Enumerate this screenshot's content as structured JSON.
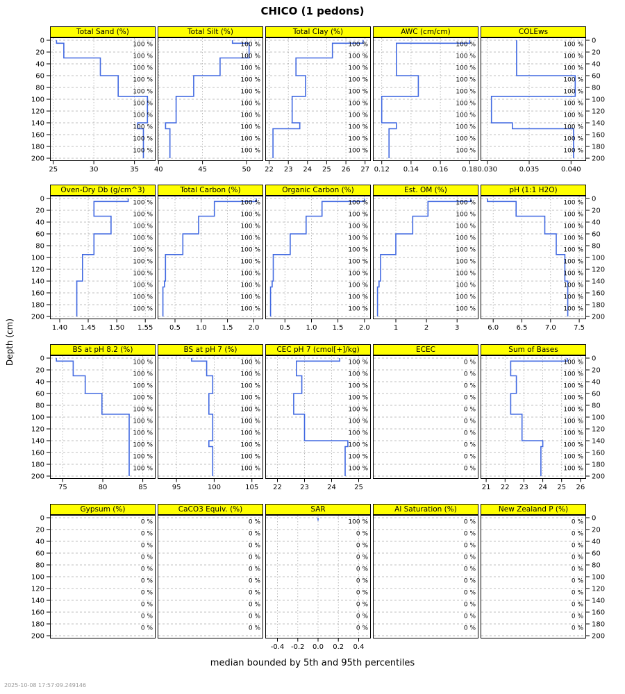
{
  "title": "CHICO (1 pedons)",
  "caption": "median bounded by 5th and 95th percentiles",
  "timestamp": "2025-10-08 17:57:09.249146",
  "ylab": "Depth (cm)",
  "colors": {
    "median_line": "#4169E1",
    "strip_bg": "#FFFF00",
    "strip_border": "#000000",
    "panel_border": "#000000",
    "grid": "#AAAAAA",
    "text": "#000000",
    "timestamp_text": "#999999"
  },
  "depth_axis": {
    "label": "Depth (cm)",
    "tick_values": [
      0,
      20,
      40,
      60,
      80,
      100,
      120,
      140,
      160,
      180,
      200
    ],
    "tick_labels": [
      "0",
      "20",
      "40",
      "60",
      "80",
      "100",
      "120",
      "140",
      "160",
      "180",
      "200"
    ]
  },
  "chart_data": {
    "type": "line",
    "note": "step profiles of median soil property value vs depth (cm); steps are [top_cm, bottom_cm, value]; pct_labels are contributing fraction labels per 20 cm slice",
    "slice_label_depths": [
      0,
      20,
      40,
      60,
      80,
      100,
      120,
      140,
      160,
      180
    ],
    "rows": [
      {
        "panels": [
          {
            "strip": "Total Sand (%)",
            "x_domain": [
              24.6,
              37.6
            ],
            "tick_values": [
              25,
              30,
              35
            ],
            "tick_labels": [
              "25",
              "30",
              "35"
            ],
            "steps": [
              [
                0,
                5,
                25.4
              ],
              [
                5,
                30,
                26.3
              ],
              [
                30,
                60,
                30.8
              ],
              [
                60,
                95,
                33.0
              ],
              [
                95,
                140,
                36.6
              ],
              [
                140,
                150,
                35.4
              ],
              [
                150,
                200,
                36.1
              ]
            ],
            "pct_labels": "100 %"
          },
          {
            "strip": "Total Silt (%)",
            "x_domain": [
              39.9,
              51.9
            ],
            "tick_values": [
              40,
              45,
              50
            ],
            "tick_labels": [
              "40",
              "45",
              "50"
            ],
            "steps": [
              [
                0,
                5,
                48.4
              ],
              [
                5,
                30,
                50.3
              ],
              [
                30,
                60,
                47.0
              ],
              [
                60,
                95,
                44.0
              ],
              [
                95,
                140,
                42.0
              ],
              [
                140,
                150,
                40.8
              ],
              [
                150,
                200,
                41.3
              ]
            ],
            "pct_labels": "100 %"
          },
          {
            "strip": "Total Clay (%)",
            "x_domain": [
              21.8,
              27.3
            ],
            "tick_values": [
              22,
              23,
              24,
              25,
              26,
              27
            ],
            "tick_labels": [
              "22",
              "23",
              "24",
              "25",
              "26",
              "27"
            ],
            "steps": [
              [
                0,
                5,
                26.9
              ],
              [
                5,
                30,
                25.3
              ],
              [
                30,
                60,
                23.4
              ],
              [
                60,
                95,
                23.9
              ],
              [
                95,
                140,
                23.2
              ],
              [
                140,
                150,
                23.6
              ],
              [
                150,
                200,
                22.2
              ]
            ],
            "pct_labels": "100 %"
          },
          {
            "strip": "AWC (cm/cm)",
            "x_domain": [
              0.114,
              0.186
            ],
            "tick_values": [
              0.12,
              0.14,
              0.16,
              0.18
            ],
            "tick_labels": [
              "0.12",
              "0.14",
              "0.16",
              "0.18"
            ],
            "steps": [
              [
                0,
                5,
                0.18
              ],
              [
                5,
                30,
                0.13
              ],
              [
                30,
                60,
                0.13
              ],
              [
                60,
                95,
                0.145
              ],
              [
                95,
                140,
                0.12
              ],
              [
                140,
                150,
                0.13
              ],
              [
                150,
                200,
                0.125
              ]
            ],
            "pct_labels": "100 %"
          },
          {
            "strip": "COLEws",
            "x_domain": [
              0.0292,
              0.0418
            ],
            "tick_values": [
              0.03,
              0.035,
              0.04
            ],
            "tick_labels": [
              "0.030",
              "0.035",
              "0.040"
            ],
            "steps": [
              [
                0,
                5,
                0.0335
              ],
              [
                5,
                30,
                0.0335
              ],
              [
                30,
                60,
                0.0335
              ],
              [
                60,
                95,
                0.0405
              ],
              [
                95,
                140,
                0.0305
              ],
              [
                140,
                150,
                0.033
              ],
              [
                150,
                200,
                0.0403
              ]
            ],
            "pct_labels": "100 %"
          }
        ]
      },
      {
        "panels": [
          {
            "strip": "Oven-Dry Db (g/cm^3)",
            "x_domain": [
              1.383,
              1.568
            ],
            "tick_values": [
              1.4,
              1.45,
              1.5,
              1.55
            ],
            "tick_labels": [
              "1.40",
              "1.45",
              "1.50",
              "1.55"
            ],
            "steps": [
              [
                0,
                5,
                1.52
              ],
              [
                5,
                30,
                1.46
              ],
              [
                30,
                60,
                1.49
              ],
              [
                60,
                95,
                1.46
              ],
              [
                95,
                140,
                1.44
              ],
              [
                140,
                150,
                1.43
              ],
              [
                150,
                200,
                1.43
              ]
            ],
            "pct_labels": "100 %"
          },
          {
            "strip": "Total Carbon (%)",
            "x_domain": [
              0.17,
              2.18
            ],
            "tick_values": [
              0.5,
              1.0,
              1.5,
              2.0
            ],
            "tick_labels": [
              "0.5",
              "1.0",
              "1.5",
              "2.0"
            ],
            "steps": [
              [
                0,
                5,
                2.05
              ],
              [
                5,
                30,
                1.25
              ],
              [
                30,
                60,
                0.95
              ],
              [
                60,
                95,
                0.65
              ],
              [
                95,
                140,
                0.32
              ],
              [
                140,
                150,
                0.3
              ],
              [
                150,
                200,
                0.27
              ]
            ],
            "pct_labels": "100 %"
          },
          {
            "strip": "Organic Carbon (%)",
            "x_domain": [
              0.13,
              2.12
            ],
            "tick_values": [
              0.5,
              1.0,
              1.5,
              2.0
            ],
            "tick_labels": [
              "0.5",
              "1.0",
              "1.5",
              "2.0"
            ],
            "steps": [
              [
                0,
                5,
                2.0
              ],
              [
                5,
                30,
                1.2
              ],
              [
                30,
                60,
                0.9
              ],
              [
                60,
                95,
                0.6
              ],
              [
                95,
                140,
                0.28
              ],
              [
                140,
                150,
                0.26
              ],
              [
                150,
                200,
                0.23
              ]
            ],
            "pct_labels": "100 %"
          },
          {
            "strip": "Est. OM (%)",
            "x_domain": [
              0.25,
              3.7
            ],
            "tick_values": [
              1,
              2,
              3
            ],
            "tick_labels": [
              "1",
              "2",
              "3"
            ],
            "steps": [
              [
                0,
                5,
                3.45
              ],
              [
                5,
                30,
                2.05
              ],
              [
                30,
                60,
                1.55
              ],
              [
                60,
                95,
                1.0
              ],
              [
                95,
                140,
                0.5
              ],
              [
                140,
                150,
                0.45
              ],
              [
                150,
                200,
                0.4
              ]
            ],
            "pct_labels": "100 %"
          },
          {
            "strip": "pH (1:1 H2O)",
            "x_domain": [
              5.78,
              7.62
            ],
            "tick_values": [
              6.0,
              6.5,
              7.0,
              7.5
            ],
            "tick_labels": [
              "6.0",
              "6.5",
              "7.0",
              "7.5"
            ],
            "steps": [
              [
                0,
                5,
                5.9
              ],
              [
                5,
                30,
                6.4
              ],
              [
                30,
                60,
                6.9
              ],
              [
                60,
                95,
                7.1
              ],
              [
                95,
                140,
                7.25
              ],
              [
                140,
                150,
                7.3
              ],
              [
                150,
                200,
                7.3
              ]
            ],
            "pct_labels": "100 %"
          }
        ]
      },
      {
        "panels": [
          {
            "strip": "BS at pH 8.2 (%)",
            "x_domain": [
              73.4,
              86.6
            ],
            "tick_values": [
              75,
              80,
              85
            ],
            "tick_labels": [
              "75",
              "80",
              "85"
            ],
            "steps": [
              [
                0,
                5,
                74.2
              ],
              [
                5,
                30,
                76.3
              ],
              [
                30,
                60,
                77.8
              ],
              [
                60,
                95,
                79.9
              ],
              [
                95,
                140,
                83.3
              ],
              [
                140,
                150,
                83.3
              ],
              [
                150,
                200,
                83.3
              ]
            ],
            "pct_labels": "100 %"
          },
          {
            "strip": "BS at pH 7 (%)",
            "x_domain": [
              92.5,
              106.5
            ],
            "tick_values": [
              95,
              100,
              105
            ],
            "tick_labels": [
              "95",
              "100",
              "105"
            ],
            "steps": [
              [
                0,
                5,
                97.0
              ],
              [
                5,
                30,
                99.0
              ],
              [
                30,
                60,
                99.8
              ],
              [
                60,
                95,
                99.3
              ],
              [
                95,
                140,
                99.8
              ],
              [
                140,
                150,
                99.3
              ],
              [
                150,
                200,
                99.8
              ]
            ],
            "pct_labels": "100 %"
          },
          {
            "strip": "CEC pH 7 (cmol[+]/kg)",
            "x_domain": [
              21.55,
              25.45
            ],
            "tick_values": [
              22,
              23,
              24,
              25
            ],
            "tick_labels": [
              "22",
              "23",
              "24",
              "25"
            ],
            "steps": [
              [
                0,
                5,
                24.3
              ],
              [
                5,
                30,
                22.7
              ],
              [
                30,
                60,
                22.9
              ],
              [
                60,
                95,
                22.6
              ],
              [
                95,
                140,
                23.0
              ],
              [
                140,
                150,
                24.6
              ],
              [
                150,
                200,
                24.5
              ]
            ],
            "pct_labels": "100 %"
          },
          {
            "strip": "ECEC",
            "x_domain": null,
            "tick_values": [],
            "tick_labels": [],
            "steps": [],
            "pct_labels": "0 %"
          },
          {
            "strip": "Sum of Bases",
            "x_domain": [
              20.7,
              26.3
            ],
            "tick_values": [
              21,
              22,
              23,
              24,
              25,
              26
            ],
            "tick_labels": [
              "21",
              "22",
              "23",
              "24",
              "25",
              "26"
            ],
            "steps": [
              [
                0,
                5,
                25.3
              ],
              [
                5,
                30,
                22.3
              ],
              [
                30,
                60,
                22.6
              ],
              [
                60,
                95,
                22.3
              ],
              [
                95,
                140,
                22.9
              ],
              [
                140,
                150,
                24.0
              ],
              [
                150,
                200,
                23.9
              ]
            ],
            "pct_labels": "100 %"
          }
        ]
      },
      {
        "panels": [
          {
            "strip": "Gypsum (%)",
            "x_domain": null,
            "tick_values": [],
            "tick_labels": [],
            "steps": [],
            "pct_labels": "0 %"
          },
          {
            "strip": "CaCO3 Equiv. (%)",
            "x_domain": null,
            "tick_values": [],
            "tick_labels": [],
            "steps": [],
            "pct_labels": "0 %"
          },
          {
            "strip": "SAR",
            "x_domain": [
              -0.52,
              0.52
            ],
            "tick_values": [
              -0.4,
              -0.2,
              0.0,
              0.2,
              0.4
            ],
            "tick_labels": [
              "-0.4",
              "-0.2",
              "0.0",
              "0.2",
              "0.4"
            ],
            "steps": [
              [
                0,
                5,
                0.0
              ]
            ],
            "pct_labels": [
              "100 %",
              "0 %",
              "0 %",
              "0 %",
              "0 %",
              "0 %",
              "0 %",
              "0 %",
              "0 %",
              "0 %"
            ]
          },
          {
            "strip": "Al Saturation (%)",
            "x_domain": null,
            "tick_values": [],
            "tick_labels": [],
            "steps": [],
            "pct_labels": "0 %"
          },
          {
            "strip": "New Zealand P (%)",
            "x_domain": null,
            "tick_values": [],
            "tick_labels": [],
            "steps": [],
            "pct_labels": "0 %"
          }
        ]
      }
    ]
  }
}
